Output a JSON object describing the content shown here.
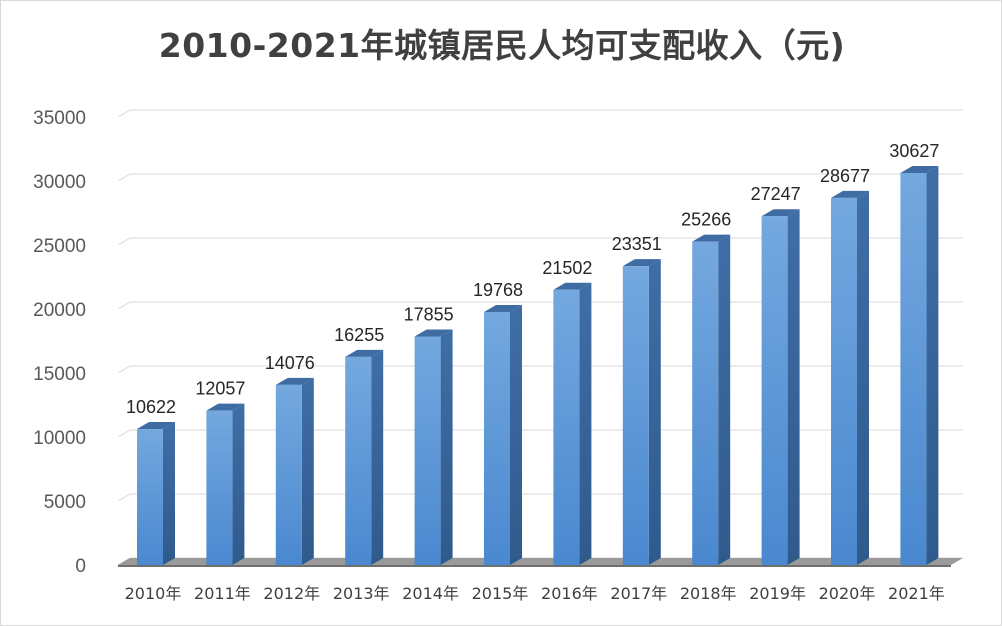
{
  "chart_data": {
    "type": "bar",
    "title": "2010-2021年城镇居民人均可支配收入（元)",
    "categories": [
      "2010年",
      "2011年",
      "2012年",
      "2013年",
      "2014年",
      "2015年",
      "2016年",
      "2017年",
      "2018年",
      "2019年",
      "2020年",
      "2021年"
    ],
    "series": [
      {
        "values": [
          10622,
          12057,
          14076,
          16255,
          17855,
          19768,
          21502,
          23351,
          25266,
          27247,
          28677,
          30627
        ]
      }
    ],
    "ylim": [
      0,
      35000
    ],
    "yticks": [
      "0",
      "5000",
      "10000",
      "15000",
      "20000",
      "25000",
      "30000",
      "35000"
    ],
    "grid": true,
    "legend": "none",
    "three_d": true,
    "bar_color": "#5b9bd5"
  }
}
